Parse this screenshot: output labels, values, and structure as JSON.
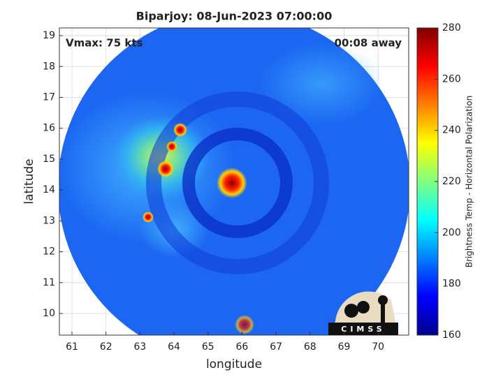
{
  "chart_data": {
    "type": "heatmap",
    "title": "Biparjoy: 08-Jun-2023 07:00:00",
    "annotations": [
      "Vmax: 75 kts",
      "00:08 away"
    ],
    "xlabel": "longitude",
    "ylabel": "latitude",
    "xlim": [
      60.63,
      70.9
    ],
    "xticks": [
      61,
      62,
      63,
      64,
      65,
      66,
      67,
      68,
      69,
      70
    ],
    "ylim": [
      9.3,
      19.25
    ],
    "yticks": [
      10,
      11,
      12,
      13,
      14,
      15,
      16,
      17,
      18,
      19
    ],
    "grid": true,
    "colorbar_label": "Brightness Temp - Horizontal Polarization",
    "clim": [
      160,
      280
    ],
    "cticks": [
      160,
      180,
      200,
      220,
      240,
      260,
      280
    ],
    "colormap": "jet",
    "logo": "CIMSS"
  }
}
